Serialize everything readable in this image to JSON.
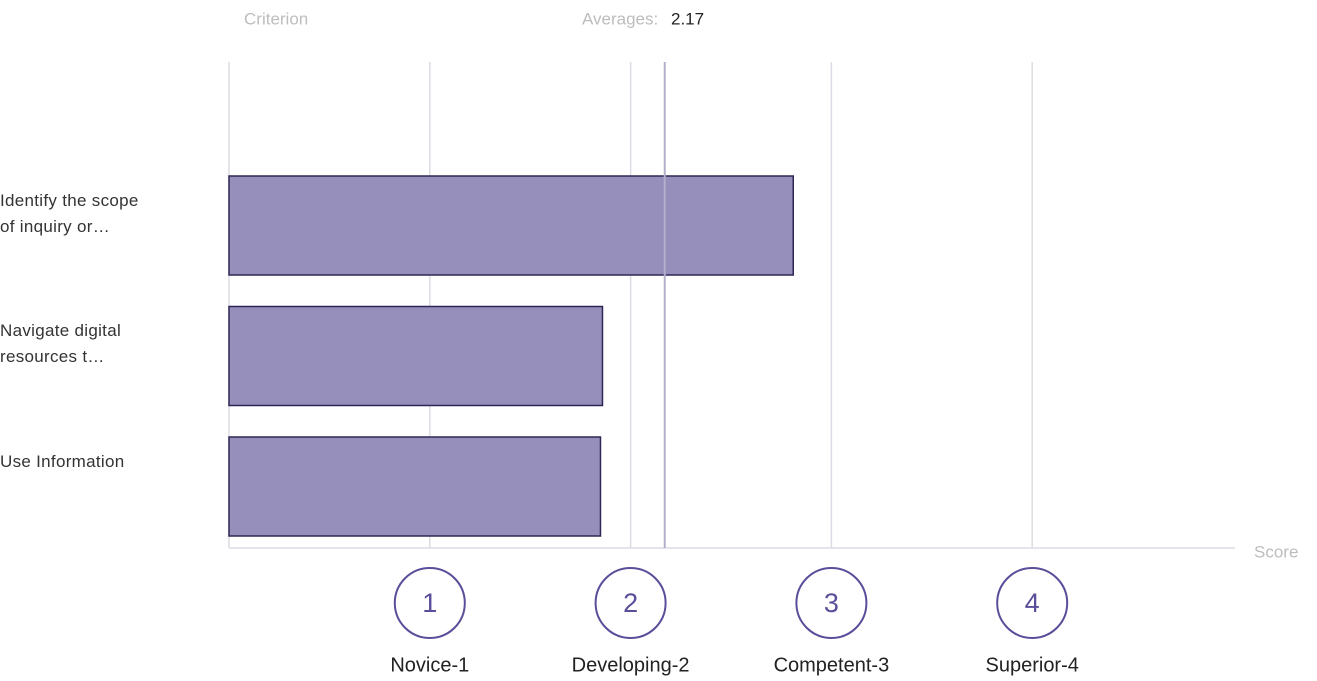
{
  "chart_data": {
    "type": "hbar",
    "criterion_label": "Criterion",
    "average_label": "Averages:",
    "average": 2.17,
    "x_label": "Score",
    "categories": [
      "Identify the scope of inquiry or…",
      "Navigate digital resources t…",
      "Use Information"
    ],
    "values": [
      2.81,
      1.86,
      1.85
    ],
    "color": "#968fbb",
    "edge_color": "#2e2655",
    "xlim": [
      0,
      5
    ],
    "xticks": [
      1,
      2,
      3,
      4
    ],
    "score_levels": [
      "Novice-1",
      "Developing-2",
      "Competent-3",
      "Superior-4"
    ],
    "grid": true
  }
}
